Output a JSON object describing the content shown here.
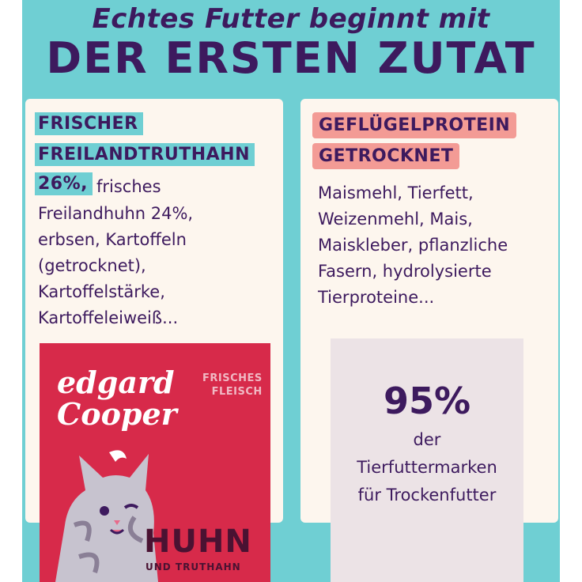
{
  "headline": {
    "line1": "Echtes Futter beginnt mit",
    "line2": "DER ERSTEN ZUTAT"
  },
  "left_card": {
    "highlight_lines": [
      "FRISCHER",
      "FREILANDTRUTHAHN",
      "26%,"
    ],
    "first_line_rest": "frisches",
    "text_lines": [
      "Freilandhuhn 24%,",
      "erbsen, Kartoffeln",
      "(getrocknet),",
      "Kartoffelstärke,",
      "Kartoffeleiweiß..."
    ]
  },
  "right_card": {
    "highlight_lines": [
      "GEFLÜGELPROTEIN",
      "GETROCKNET"
    ],
    "text_lines": [
      "Maismehl, Tierfett,",
      "Weizenmehl, Mais,",
      "Maiskleber, pflanzliche",
      "Fasern, hydrolysierte",
      "Tierproteine..."
    ]
  },
  "package": {
    "brand_line1": "edgard",
    "brand_line2": "Cooper",
    "tag_line1": "FRISCHES",
    "tag_line2": "FLEISCH",
    "title": "HUHN",
    "subtitle": "UND TRUTHAHN"
  },
  "stat": {
    "value": "95%",
    "lines": [
      "der",
      "Tierfuttermarken",
      "für Trockenfutter"
    ]
  },
  "colors": {
    "teal": "#6fcfd3",
    "purple": "#3d1a5e",
    "pink_highlight": "#f39b95",
    "package_red": "#d72a4a",
    "card": "#fdf6ee"
  }
}
